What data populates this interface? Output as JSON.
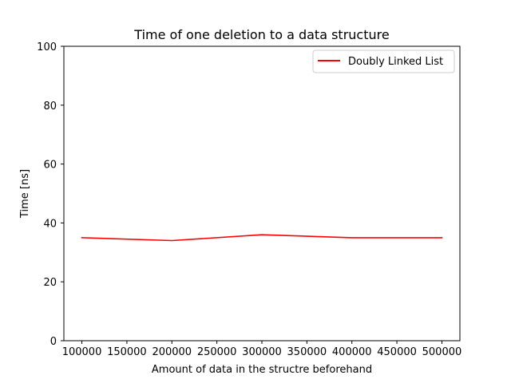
{
  "chart_data": {
    "type": "line",
    "title": "Time of one deletion to a data structure",
    "xlabel": "Amount of data in the structre beforehand",
    "ylabel": "Time [ns]",
    "x_ticks": [
      "100000",
      "150000",
      "200000",
      "250000",
      "300000",
      "350000",
      "400000",
      "450000",
      "500000"
    ],
    "y_ticks": [
      "0",
      "20",
      "40",
      "60",
      "80",
      "100"
    ],
    "xlim": [
      80000,
      520000
    ],
    "ylim": [
      0,
      100
    ],
    "grid": false,
    "legend_position": "upper-right",
    "series": [
      {
        "name": "Doubly Linked List",
        "color": "#ff0000",
        "x": [
          100000,
          200000,
          300000,
          400000,
          500000
        ],
        "y": [
          35,
          34,
          36,
          35,
          35
        ]
      }
    ]
  }
}
